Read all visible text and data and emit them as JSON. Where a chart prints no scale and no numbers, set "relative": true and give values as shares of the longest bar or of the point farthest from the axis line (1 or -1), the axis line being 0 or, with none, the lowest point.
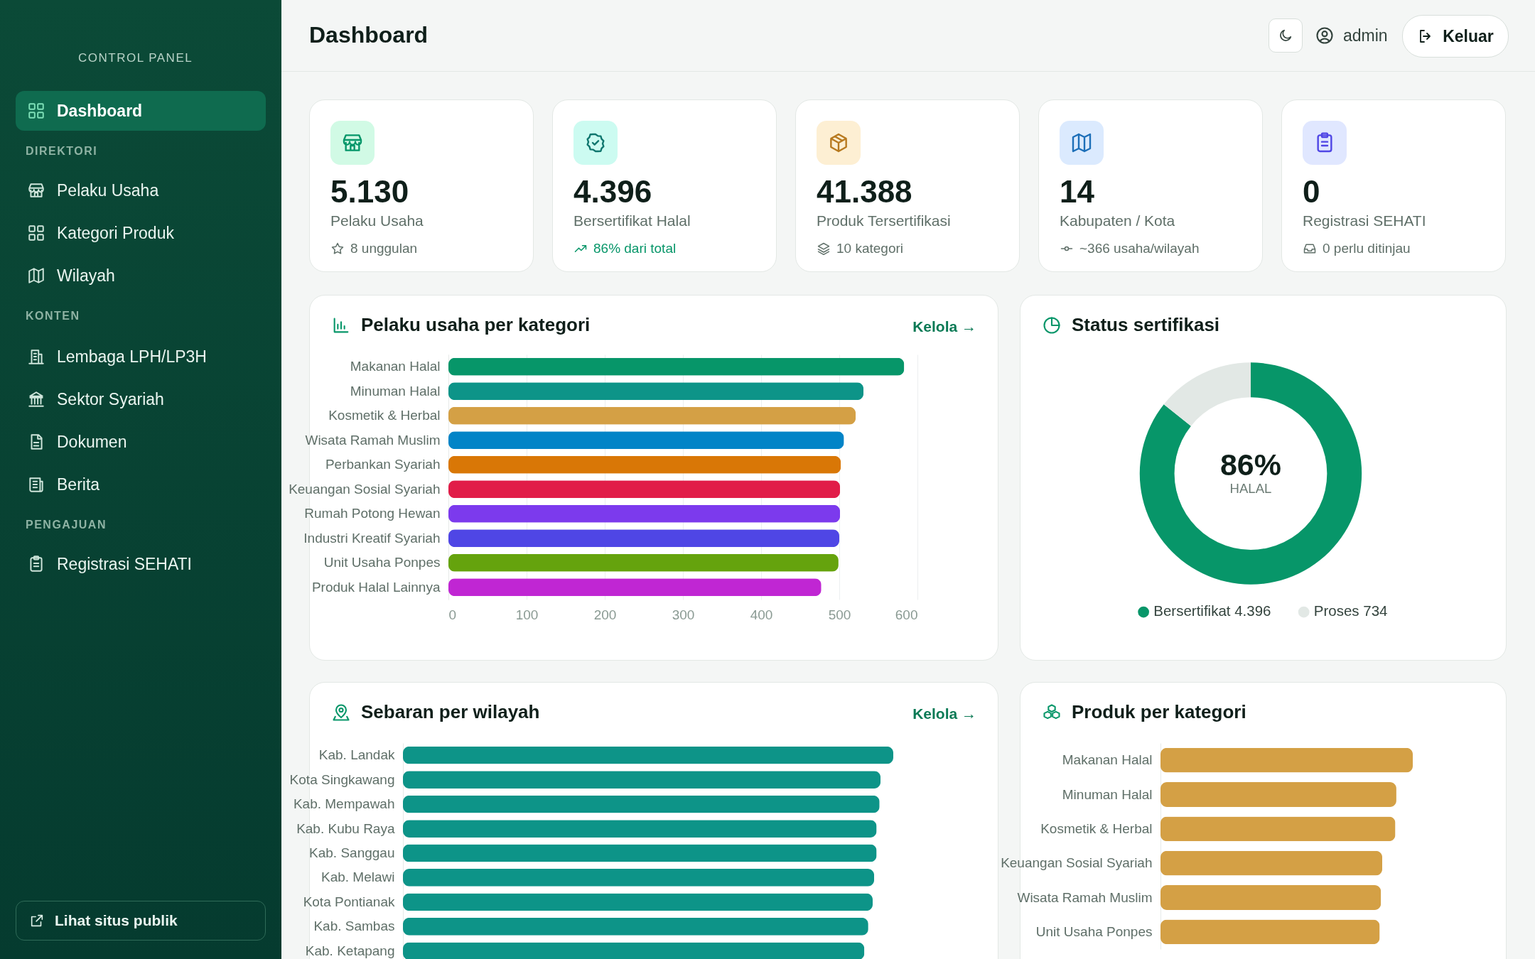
{
  "chart_data": [
    {
      "type": "other",
      "annotations": [
        "CONTROL PANEL",
        "Dashboard",
        "DIREKTORI",
        "Pelaku Usaha",
        "Kategori Produk",
        "Wilayah",
        "KONTEN",
        "Lembaga LPH/LP3H",
        "Sektor Syariah",
        "Dokumen",
        "Berita",
        "PENGAJUAN",
        "Registrasi SEHATI",
        "Lihat situs publik"
      ]
    },
    {
      "type": "other",
      "title": "Dashboard",
      "annotations": [
        "admin",
        "Keluar"
      ]
    },
    {
      "type": "other",
      "annotations": [
        "5.130",
        "Pelaku Usaha",
        "8 unggulan"
      ]
    },
    {
      "type": "other",
      "annotations": [
        "4.396",
        "Bersertifikat Halal",
        "86% dari total"
      ]
    },
    {
      "type": "other",
      "annotations": [
        "41.388",
        "Produk Tersertifikasi",
        "10 kategori"
      ]
    },
    {
      "type": "other",
      "annotations": [
        "14",
        "Kabupaten / Kota",
        "~366 usaha/wilayah"
      ]
    },
    {
      "type": "other",
      "annotations": [
        "0",
        "Registrasi SEHATI",
        "0 perlu ditinjau"
      ]
    },
    {
      "type": "bar",
      "title": "Pelaku usaha per kategori",
      "orientation": "horizontal",
      "annotations": [
        "Kelola →"
      ],
      "categories": [
        "Makanan Halal",
        "Minuman Halal",
        "Kosmetik & Herbal",
        "Wisata Ramah Muslim",
        "Perbankan Syariah",
        "Keuangan Sosial Syariah",
        "Rumah Potong Hewan",
        "Industri Kreatif Syariah",
        "Unit Usaha Ponpes",
        "Produk Halal Lainnya"
      ],
      "values": [
        583,
        531,
        521,
        506,
        502,
        501,
        501,
        500,
        499,
        477
      ],
      "colors": [
        "#079669",
        "#0d9488",
        "#d4a045",
        "#0284c7",
        "#d97706",
        "#e11d48",
        "#7c3aed",
        "#4f46e5",
        "#65a30d",
        "#c026d3"
      ],
      "xlim": [
        0,
        600
      ],
      "xticks": [
        0,
        100,
        200,
        300,
        400,
        500,
        600
      ],
      "grid": "x"
    },
    {
      "type": "donut",
      "title": "Status sertifikasi",
      "categories": [
        "Bersertifikat",
        "Proses"
      ],
      "values": [
        4396,
        734
      ],
      "value_labels": [
        "4.396",
        "734"
      ],
      "colors": [
        "#079669",
        "#e2e8e5"
      ],
      "legend": "bottom",
      "annotations": [
        "86%",
        "HALAL"
      ]
    },
    {
      "type": "bar",
      "title": "Sebaran per wilayah",
      "orientation": "horizontal",
      "relative": true,
      "annotations": [
        "Kelola →"
      ],
      "categories": [
        "Kab. Landak",
        "Kota Singkawang",
        "Kab. Mempawah",
        "Kab. Kubu Raya",
        "Kab. Sanggau",
        "Kab. Melawi",
        "Kota Pontianak",
        "Kab. Sambas",
        "Kab. Ketapang"
      ],
      "values": [
        1,
        0.974,
        0.972,
        0.966,
        0.966,
        0.961,
        0.958,
        0.949,
        0.941
      ],
      "color": "#0d9488"
    },
    {
      "type": "bar",
      "title": "Produk per kategori",
      "orientation": "horizontal",
      "relative": true,
      "categories": [
        "Makanan Halal",
        "Minuman Halal",
        "Kosmetik & Herbal",
        "Keuangan Sosial Syariah",
        "Wisata Ramah Muslim",
        "Unit Usaha Ponpes"
      ],
      "values": [
        1,
        0.935,
        0.931,
        0.879,
        0.874,
        0.869
      ],
      "color": "#d4a045"
    }
  ]
}
